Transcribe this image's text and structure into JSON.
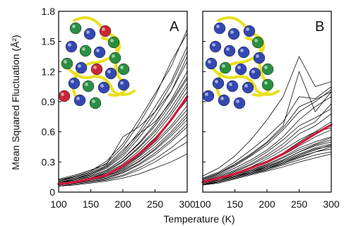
{
  "chart_data": [
    {
      "type": "line",
      "panel_label": "A",
      "x": [
        100,
        125,
        150,
        175,
        200,
        225,
        250,
        275,
        300
      ],
      "series": [
        {
          "values": [
            0.08,
            0.1,
            0.13,
            0.17,
            0.26,
            0.38,
            0.52,
            0.72,
            0.95
          ],
          "emphasis": true,
          "color": "#d0183a"
        },
        {
          "values": [
            0.06,
            0.08,
            0.1,
            0.12,
            0.16,
            0.22,
            0.3,
            0.4,
            0.5
          ]
        },
        {
          "values": [
            0.07,
            0.09,
            0.11,
            0.14,
            0.19,
            0.27,
            0.37,
            0.5,
            0.65
          ]
        },
        {
          "values": [
            0.08,
            0.1,
            0.13,
            0.17,
            0.24,
            0.35,
            0.48,
            0.64,
            0.82
          ]
        },
        {
          "values": [
            0.09,
            0.11,
            0.14,
            0.19,
            0.28,
            0.41,
            0.57,
            0.77,
            1.0
          ]
        },
        {
          "values": [
            0.1,
            0.12,
            0.16,
            0.22,
            0.33,
            0.49,
            0.68,
            0.92,
            1.2
          ]
        },
        {
          "values": [
            0.11,
            0.14,
            0.18,
            0.26,
            0.4,
            0.6,
            0.85,
            1.1,
            1.45
          ]
        },
        {
          "values": [
            0.12,
            0.16,
            0.21,
            0.31,
            0.48,
            0.72,
            0.98,
            1.25,
            1.62
          ]
        },
        {
          "values": [
            0.13,
            0.17,
            0.22,
            0.28,
            0.55,
            0.65,
            0.8,
            1.0,
            1.3
          ]
        },
        {
          "values": [
            0.06,
            0.07,
            0.09,
            0.11,
            0.14,
            0.18,
            0.24,
            0.3,
            0.38
          ]
        },
        {
          "values": [
            0.07,
            0.09,
            0.12,
            0.15,
            0.21,
            0.3,
            0.42,
            0.56,
            0.72
          ]
        },
        {
          "values": [
            0.08,
            0.1,
            0.12,
            0.16,
            0.23,
            0.33,
            0.45,
            0.6,
            0.78
          ]
        },
        {
          "values": [
            0.09,
            0.12,
            0.15,
            0.21,
            0.31,
            0.45,
            0.62,
            0.84,
            1.08
          ]
        },
        {
          "values": [
            0.1,
            0.13,
            0.17,
            0.24,
            0.36,
            0.54,
            0.75,
            1.0,
            1.35
          ]
        },
        {
          "values": [
            0.11,
            0.15,
            0.2,
            0.29,
            0.45,
            0.68,
            0.95,
            1.3,
            1.58
          ]
        },
        {
          "values": [
            0.07,
            0.09,
            0.11,
            0.14,
            0.2,
            0.28,
            0.39,
            0.52,
            0.68
          ]
        },
        {
          "values": [
            0.08,
            0.11,
            0.14,
            0.18,
            0.27,
            0.39,
            0.54,
            0.72,
            0.92
          ]
        },
        {
          "values": [
            0.09,
            0.11,
            0.14,
            0.2,
            0.3,
            0.44,
            0.6,
            0.8,
            1.05
          ]
        },
        {
          "values": [
            0.1,
            0.13,
            0.18,
            0.25,
            0.38,
            0.57,
            0.8,
            1.07,
            1.4
          ]
        },
        {
          "values": [
            0.06,
            0.08,
            0.1,
            0.13,
            0.17,
            0.24,
            0.33,
            0.44,
            0.57
          ]
        },
        {
          "values": [
            0.07,
            0.09,
            0.12,
            0.16,
            0.22,
            0.31,
            0.43,
            0.58,
            0.75
          ]
        },
        {
          "values": [
            0.08,
            0.1,
            0.13,
            0.17,
            0.25,
            0.36,
            0.5,
            0.66,
            0.86
          ]
        },
        {
          "values": [
            0.09,
            0.12,
            0.16,
            0.22,
            0.33,
            0.48,
            0.66,
            0.88,
            1.13
          ]
        },
        {
          "values": [
            0.12,
            0.15,
            0.19,
            0.27,
            0.42,
            0.58,
            0.7,
            0.9,
            1.15
          ]
        }
      ],
      "xlim": [
        100,
        300
      ],
      "ylim": [
        0,
        1.8
      ]
    },
    {
      "type": "line",
      "panel_label": "B",
      "x": [
        100,
        125,
        150,
        175,
        200,
        225,
        250,
        275,
        300
      ],
      "series": [
        {
          "values": [
            0.1,
            0.14,
            0.18,
            0.24,
            0.3,
            0.38,
            0.48,
            0.58,
            0.67
          ],
          "emphasis": true,
          "color": "#d0183a"
        },
        {
          "values": [
            0.07,
            0.1,
            0.14,
            0.18,
            0.22,
            0.27,
            0.32,
            0.37,
            0.4
          ]
        },
        {
          "values": [
            0.08,
            0.11,
            0.15,
            0.19,
            0.24,
            0.29,
            0.36,
            0.42,
            0.47
          ]
        },
        {
          "values": [
            0.09,
            0.12,
            0.16,
            0.21,
            0.26,
            0.32,
            0.4,
            0.47,
            0.52
          ]
        },
        {
          "values": [
            0.1,
            0.14,
            0.19,
            0.25,
            0.31,
            0.39,
            0.5,
            0.6,
            0.7
          ]
        },
        {
          "values": [
            0.12,
            0.17,
            0.24,
            0.32,
            0.42,
            0.55,
            0.72,
            0.85,
            0.95
          ]
        },
        {
          "values": [
            0.14,
            0.2,
            0.3,
            0.42,
            0.55,
            0.7,
            0.95,
            0.93,
            1.05
          ]
        },
        {
          "values": [
            0.16,
            0.24,
            0.36,
            0.52,
            0.72,
            0.95,
            1.35,
            1.05,
            1.1
          ]
        },
        {
          "values": [
            0.13,
            0.19,
            0.28,
            0.38,
            0.5,
            0.66,
            1.2,
            0.8,
            1.0
          ]
        },
        {
          "values": [
            0.11,
            0.16,
            0.22,
            0.3,
            0.4,
            0.52,
            0.66,
            0.74,
            0.83
          ]
        },
        {
          "values": [
            0.08,
            0.11,
            0.15,
            0.2,
            0.26,
            0.32,
            0.4,
            0.46,
            0.5
          ]
        },
        {
          "values": [
            0.09,
            0.12,
            0.17,
            0.22,
            0.28,
            0.35,
            0.44,
            0.5,
            0.55
          ]
        },
        {
          "values": [
            0.1,
            0.13,
            0.18,
            0.24,
            0.3,
            0.37,
            0.46,
            0.55,
            0.62
          ]
        },
        {
          "values": [
            0.12,
            0.18,
            0.26,
            0.36,
            0.47,
            0.62,
            0.8,
            0.9,
            1.02
          ]
        },
        {
          "values": [
            0.07,
            0.09,
            0.13,
            0.17,
            0.21,
            0.25,
            0.3,
            0.34,
            0.38
          ]
        },
        {
          "values": [
            0.08,
            0.1,
            0.14,
            0.18,
            0.23,
            0.28,
            0.34,
            0.4,
            0.45
          ]
        },
        {
          "values": [
            0.09,
            0.12,
            0.16,
            0.2,
            0.25,
            0.31,
            0.38,
            0.44,
            0.48
          ]
        },
        {
          "values": [
            0.1,
            0.14,
            0.2,
            0.27,
            0.35,
            0.45,
            0.58,
            0.66,
            0.78
          ]
        },
        {
          "values": [
            0.11,
            0.15,
            0.21,
            0.28,
            0.37,
            0.48,
            0.62,
            0.7,
            0.88
          ]
        },
        {
          "values": [
            0.09,
            0.13,
            0.17,
            0.22,
            0.27,
            0.34,
            0.42,
            0.48,
            0.54
          ]
        },
        {
          "values": [
            0.13,
            0.19,
            0.27,
            0.37,
            0.49,
            0.64,
            0.85,
            0.92,
            1.0
          ]
        },
        {
          "values": [
            0.08,
            0.11,
            0.15,
            0.19,
            0.25,
            0.3,
            0.37,
            0.43,
            0.46
          ]
        },
        {
          "values": [
            0.1,
            0.14,
            0.19,
            0.25,
            0.33,
            0.42,
            0.52,
            0.6,
            0.64
          ]
        },
        {
          "values": [
            0.07,
            0.1,
            0.14,
            0.18,
            0.23,
            0.29,
            0.35,
            0.4,
            0.43
          ]
        }
      ],
      "xlim": [
        100,
        300
      ],
      "ylim": [
        0,
        1.8
      ]
    }
  ],
  "axes": {
    "ylabel": "Mean Squared Fluctuation (Å²)",
    "xlabel": "Temperature (K)",
    "yticks": [
      "0",
      "0.3",
      "0.6",
      "0.9",
      "1.2",
      "1.5",
      "1.8"
    ],
    "xticks": [
      "100",
      "150",
      "200",
      "250",
      "300"
    ]
  },
  "insets": {
    "A": {
      "description_icon": "protein-ribbon-with-colored-spheres-icon",
      "colors": [
        "#2a3fb0",
        "#1f8a3a",
        "#c81c2c",
        "#e8e020"
      ]
    },
    "B": {
      "description_icon": "protein-ribbon-with-blue-spheres-icon",
      "colors": [
        "#2a3fb0",
        "#1f8a3a",
        "#e8e020"
      ]
    }
  },
  "colors": {
    "mean_line": "#d0183a",
    "lines": "#000000"
  }
}
